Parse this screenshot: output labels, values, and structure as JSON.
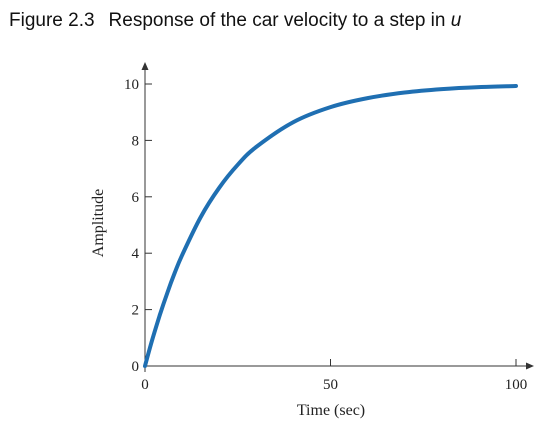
{
  "figure": {
    "number": "Figure 2.3",
    "title_text": "Response of the car velocity to a step in",
    "title_variable": "u"
  },
  "chart_data": {
    "type": "line",
    "title": "Response of the car velocity to a step in u",
    "xlabel": "Time (sec)",
    "ylabel": "Amplitude",
    "xlim": [
      0,
      100
    ],
    "ylim": [
      0,
      10
    ],
    "xticks": [
      0,
      50,
      100
    ],
    "yticks": [
      0,
      2,
      4,
      6,
      8,
      10
    ],
    "grid": false,
    "series": [
      {
        "x": [
          0,
          2,
          4,
          6,
          8,
          10,
          15,
          20,
          25,
          30,
          40,
          50,
          60,
          70,
          80,
          90,
          100
        ],
        "y": [
          0,
          0.95,
          1.81,
          2.59,
          3.3,
          3.93,
          5.28,
          6.32,
          7.14,
          7.77,
          8.65,
          9.18,
          9.5,
          9.7,
          9.82,
          9.89,
          9.93
        ]
      }
    ],
    "line_color": "#1f6fb2"
  }
}
